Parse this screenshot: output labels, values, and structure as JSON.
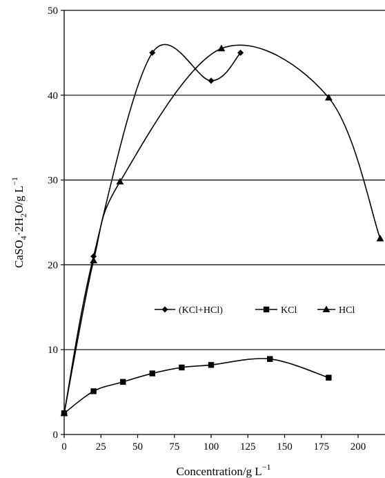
{
  "chart_data": {
    "type": "line",
    "title": "",
    "xlabel": "Concentration/g L",
    "xlabel_sup": "−1",
    "ylabel": {
      "parts": [
        "CaSO",
        "4",
        "·2H",
        "2",
        "O/g L",
        "−1"
      ]
    },
    "xlim": [
      0,
      215
    ],
    "ylim": [
      0,
      50
    ],
    "x_ticks": [
      0,
      25,
      50,
      75,
      100,
      125,
      150,
      175,
      200
    ],
    "y_ticks": [
      0,
      10,
      20,
      30,
      40,
      50
    ],
    "grid": "horizontal",
    "legend_position": "center",
    "series": [
      {
        "name": "(KCl+HCl)",
        "marker": "diamond",
        "x": [
          0,
          20,
          60,
          100,
          120
        ],
        "y": [
          2.5,
          21,
          45,
          41.7,
          45
        ]
      },
      {
        "name": "KCl",
        "marker": "square",
        "x": [
          0,
          20,
          40,
          60,
          80,
          100,
          140,
          180
        ],
        "y": [
          2.5,
          5.1,
          6.2,
          7.2,
          7.9,
          8.2,
          8.9,
          6.7
        ]
      },
      {
        "name": "HCl",
        "marker": "triangle",
        "x": [
          0,
          20,
          38,
          107,
          180,
          215
        ],
        "y": [
          2.5,
          20.5,
          29.8,
          45.5,
          39.7,
          23.1
        ]
      }
    ]
  }
}
